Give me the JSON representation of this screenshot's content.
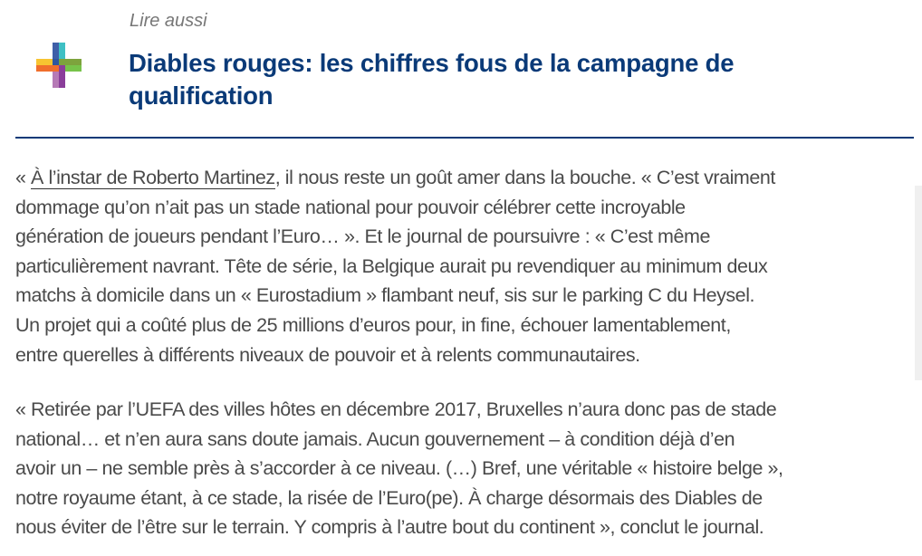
{
  "read_also": {
    "kicker": "Lire aussi",
    "title_lines": [
      "Diables rouges: les chiffres fous de la campagne de",
      "qualification"
    ],
    "icon": "multicolor-plus-logo",
    "colors": {
      "title": "#0a3a78",
      "rule": "#0a3a78"
    }
  },
  "article": {
    "p1": {
      "line0_prefix": "« ",
      "line0_link": "À l’instar de Roberto Martinez",
      "line0_suffix": ", il nous reste un goût amer dans la bouche. « C’est vraiment",
      "lines": [
        "dommage qu’on n’ait pas un stade national pour pouvoir célébrer cette incroyable",
        "génération de joueurs pendant l’Euro… ». Et le journal de poursuivre : « C’est même",
        "particulièrement navrant. Tête de série, la Belgique aurait pu revendiquer au minimum deux",
        "matchs à domicile dans un « Eurostadium » flambant neuf, sis sur le parking C du Heysel.",
        "Un projet qui a coûté plus de 25 millions d’euros pour, in fine, échouer lamentablement,",
        "entre querelles à différents niveaux de pouvoir et à relents communautaires."
      ]
    },
    "p2": {
      "lines": [
        "« Retirée par l’UEFA des villes hôtes en décembre 2017, Bruxelles n’aura donc pas de stade",
        "national… et n’en aura sans doute jamais. Aucun gouvernement – à condition déjà d’en",
        "avoir un – ne semble près à s’accorder à ce niveau. (…) Bref, une véritable « histoire belge »,",
        "notre royaume étant, à ce stade, la risée de l’Euro(pe). À charge désormais des Diables de",
        "nous éviter de l’être sur le terrain. Y compris à l’autre bout du continent », conclut le journal."
      ]
    }
  }
}
